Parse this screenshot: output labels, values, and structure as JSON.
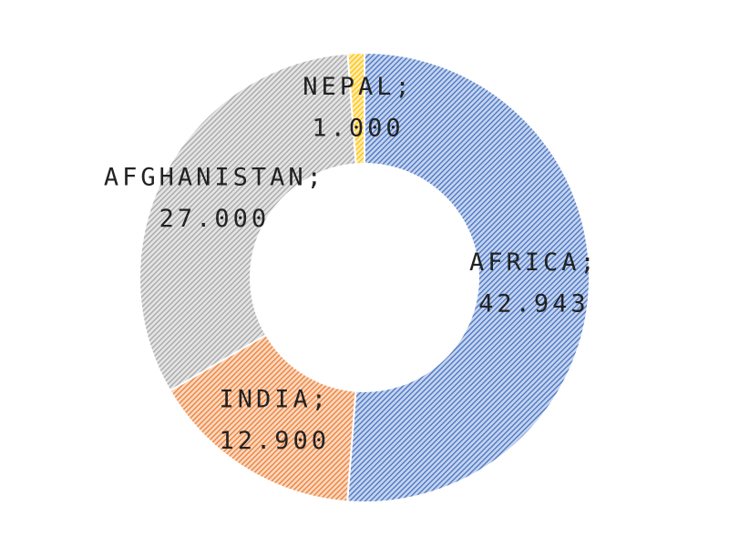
{
  "chart_data": {
    "type": "donut",
    "categories": [
      "AFRICA",
      "INDIA",
      "AFGHANISTAN",
      "NEPAL"
    ],
    "values": [
      42.943,
      12.9,
      27,
      1
    ],
    "value_labels": [
      "42.943",
      "12.900",
      "27.000",
      "1.000"
    ],
    "label_separator": ";",
    "colors": [
      "#4472c4",
      "#ed7d31",
      "#a5a5a5",
      "#ffc000"
    ]
  }
}
